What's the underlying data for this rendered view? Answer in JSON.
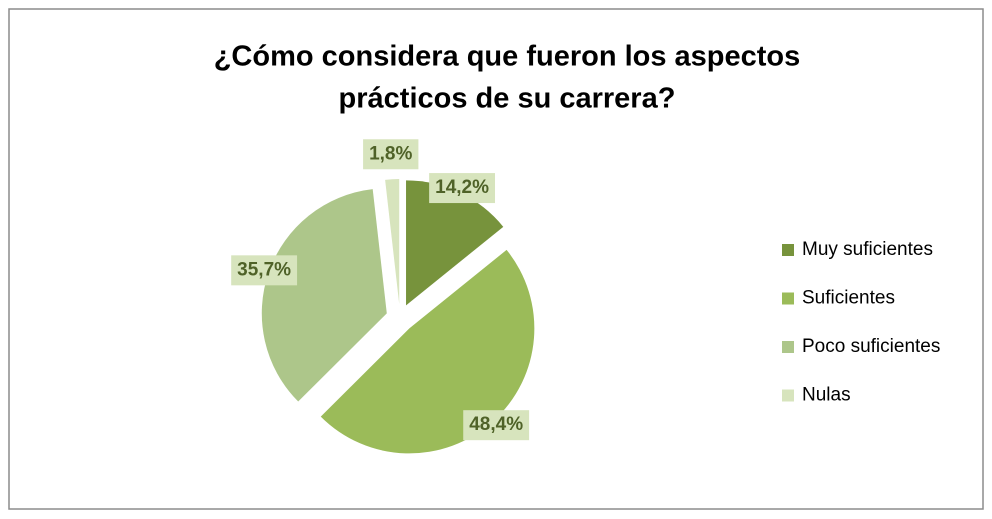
{
  "chart_data": {
    "type": "pie",
    "title": "¿Cómo considera que fueron los aspectos prácticos de su carrera?",
    "title_lines": [
      "¿Cómo considera que fueron los aspectos",
      "prácticos de su carrera?"
    ],
    "categories": [
      "Muy suficientes",
      "Suficientes",
      "Poco suficientes",
      "Nulas"
    ],
    "values": [
      14.2,
      48.4,
      35.7,
      1.8
    ],
    "value_labels": [
      "14,2%",
      "48,4%",
      "35,7%",
      "1,8%"
    ],
    "colors": [
      "#77933c",
      "#9bbb59",
      "#adc68a",
      "#d7e4bd"
    ],
    "legend": "right"
  }
}
